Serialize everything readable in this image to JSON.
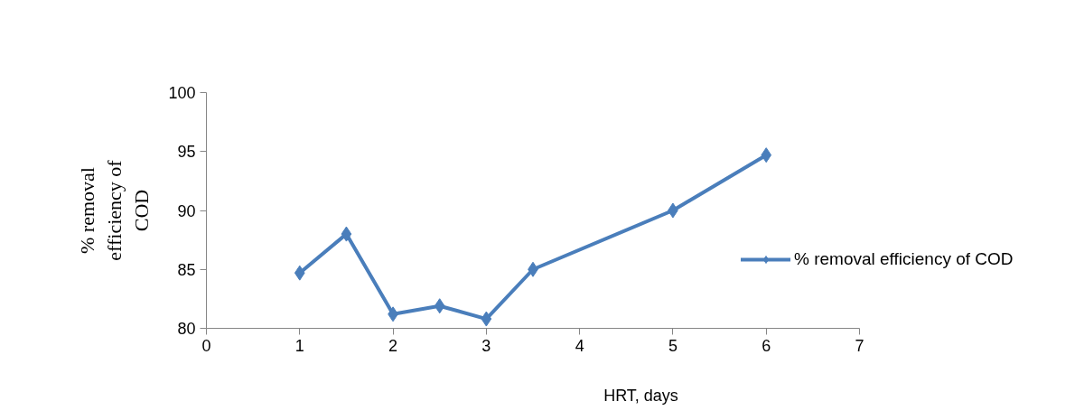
{
  "chart_data": {
    "type": "line",
    "xlabel": "HRT, days",
    "ylabel": "% removal efficiency of COD",
    "x": [
      1,
      1.5,
      2,
      2.5,
      3,
      3.5,
      5,
      6
    ],
    "series": [
      {
        "name": "% removal efficiency of COD",
        "color": "#4a7ebb",
        "values": [
          84.7,
          88.0,
          81.2,
          81.9,
          80.8,
          85.0,
          90.0,
          94.7
        ]
      }
    ],
    "xlim": [
      0,
      7
    ],
    "xticks": [
      0,
      1,
      2,
      3,
      4,
      5,
      6,
      7
    ],
    "ylim": [
      80,
      100
    ],
    "yticks": [
      80,
      85,
      90,
      95,
      100
    ],
    "grid": false,
    "legend": "right",
    "marker": "diamond",
    "line_style": "solid"
  }
}
